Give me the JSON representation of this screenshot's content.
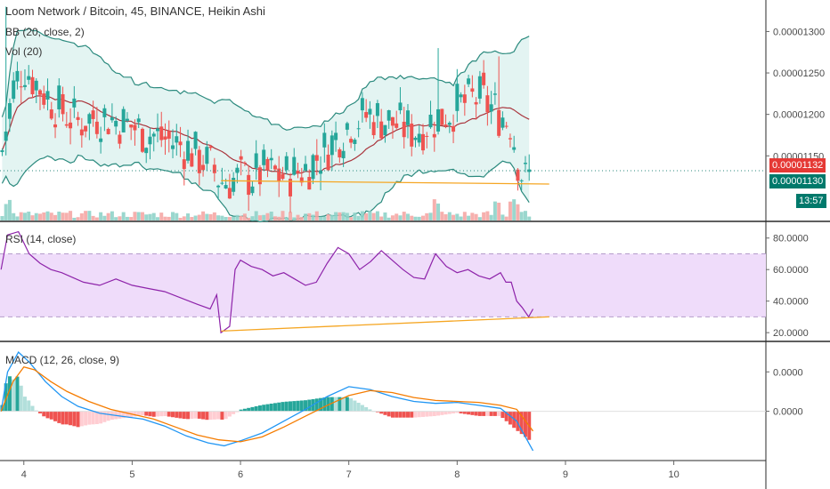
{
  "header": {
    "title": "Loom Network / Bitcoin, 45, BINANCE, Heikin Ashi",
    "bb_label": "BB (20, close, 2)",
    "vol_label": "Vol (20)",
    "rsi_label": "RSI (14, close)",
    "macd_label": "MACD (12, 26, close, 9)"
  },
  "badges": {
    "last_price": "0.00001132",
    "bb_basis": "0.00001130",
    "countdown": "13:57"
  },
  "colors": {
    "up": "#26a69a",
    "down": "#ef5350",
    "bb_band": "#2b8a7e",
    "bb_basis": "#a9343c",
    "bb_fill": "#e3f4f2",
    "rsi_line": "#8e24aa",
    "rsi_fill": "#efdcfa",
    "macd_line": "#2196f3",
    "signal_line": "#f57c00",
    "trend_line": "#f5a623",
    "last_price_badge": "#e53935",
    "basis_badge": "#00796b"
  },
  "chart_data": [
    {
      "type": "candlestick",
      "title": "Loom Network / Bitcoin, 45, BINANCE, Heikin Ashi",
      "x_ticks": [
        "4",
        "5",
        "6",
        "7",
        "8",
        "9",
        "10"
      ],
      "x_range": [
        3.78,
        10.85
      ],
      "y_ticks": [
        "0.00001300",
        "0.00001250",
        "0.00001200",
        "0.00001150"
      ],
      "y_range": [
        1.072e-05,
        1.338e-05
      ],
      "last_price": 1.132e-05,
      "bb_basis_value": 1.13e-05,
      "overlays": [
        "BB (20, close, 2)",
        "Vol (20)"
      ],
      "trend_line": {
        "x": [
          5.82,
          8.85
        ],
        "y": [
          1.12e-05,
          1.116e-05
        ]
      },
      "close_path": {
        "x": [
          3.79,
          3.9,
          4.0,
          4.1,
          4.3,
          4.5,
          4.7,
          4.9,
          5.1,
          5.3,
          5.5,
          5.7,
          5.82,
          6.0,
          6.2,
          6.4,
          6.6,
          6.8,
          7.0,
          7.2,
          7.4,
          7.6,
          7.8,
          8.0,
          8.2,
          8.4,
          8.5,
          8.55,
          8.62,
          8.7
        ],
        "y": [
          1.15e-05,
          1.23e-05,
          1.26e-05,
          1.24e-05,
          1.21e-05,
          1.19e-05,
          1.2e-05,
          1.19e-05,
          1.18e-05,
          1.17e-05,
          1.16e-05,
          1.14e-05,
          1.12e-05,
          1.122e-05,
          1.13e-05,
          1.125e-05,
          1.135e-05,
          1.16e-05,
          1.19e-05,
          1.2e-05,
          1.19e-05,
          1.18e-05,
          1.195e-05,
          1.21e-05,
          1.22e-05,
          1.2e-05,
          1.19e-05,
          1.15e-05,
          1.12e-05,
          1.13e-05
        ]
      },
      "spikes": [
        {
          "x": 7.81,
          "high": 1.28e-05
        },
        {
          "x": 8.37,
          "high": 1.27e-05
        },
        {
          "x": 3.85,
          "high": 1.33e-05
        }
      ],
      "volume_spikes": [
        3.84,
        7.81,
        8.37,
        8.5,
        8.56
      ]
    },
    {
      "type": "line",
      "title": "RSI (14, close)",
      "y_ticks": [
        "80.0000",
        "60.0000",
        "40.0000",
        "20.0000"
      ],
      "y_range": [
        15,
        90
      ],
      "bands": [
        30,
        70
      ],
      "x": [
        3.79,
        3.85,
        3.95,
        4.05,
        4.15,
        4.25,
        4.35,
        4.45,
        4.55,
        4.7,
        4.85,
        5.0,
        5.15,
        5.3,
        5.45,
        5.6,
        5.72,
        5.78,
        5.82,
        5.9,
        5.95,
        6.0,
        6.1,
        6.2,
        6.3,
        6.4,
        6.5,
        6.6,
        6.7,
        6.8,
        6.9,
        7.0,
        7.1,
        7.2,
        7.3,
        7.4,
        7.5,
        7.6,
        7.7,
        7.8,
        7.9,
        8.0,
        8.1,
        8.2,
        8.3,
        8.4,
        8.45,
        8.5,
        8.55,
        8.6,
        8.66,
        8.7
      ],
      "values": [
        60,
        82,
        84,
        70,
        64,
        60,
        58,
        55,
        52,
        50,
        54,
        50,
        48,
        46,
        42,
        38,
        35,
        44,
        20,
        24,
        60,
        66,
        62,
        60,
        56,
        58,
        54,
        50,
        52,
        64,
        74,
        70,
        60,
        65,
        72,
        66,
        60,
        55,
        54,
        70,
        62,
        58,
        60,
        56,
        54,
        58,
        52,
        52,
        40,
        36,
        30,
        35
      ],
      "trend_line": {
        "x": [
          5.82,
          8.85
        ],
        "y": [
          21,
          30
        ]
      }
    },
    {
      "type": "line",
      "title": "MACD (12, 26, close, 9)",
      "y_ticks": [
        "0.0000",
        "0.0000"
      ],
      "y_range": [
        -5,
        7
      ],
      "series": [
        {
          "x": [
            3.79,
            3.85,
            3.95,
            4.05,
            4.2,
            4.35,
            4.5,
            4.7,
            4.9,
            5.1,
            5.3,
            5.5,
            5.7,
            5.85,
            6.0,
            6.2,
            6.4,
            6.6,
            6.8,
            7.0,
            7.2,
            7.4,
            7.6,
            7.8,
            8.0,
            8.2,
            8.4,
            8.55,
            8.7
          ],
          "values": [
            0,
            4.0,
            6.0,
            5.0,
            3.0,
            1.5,
            0.5,
            -0.2,
            -0.5,
            -0.8,
            -1.5,
            -2.5,
            -3.2,
            -3.5,
            -3.0,
            -2.2,
            -1.0,
            0.2,
            1.5,
            2.5,
            2.2,
            1.5,
            1.0,
            0.8,
            0.9,
            0.6,
            0.3,
            -1.0,
            -4.0
          ]
        },
        {
          "x": [
            3.79,
            3.9,
            4.0,
            4.1,
            4.25,
            4.4,
            4.6,
            4.8,
            5.0,
            5.2,
            5.4,
            5.6,
            5.8,
            6.0,
            6.2,
            6.4,
            6.6,
            6.8,
            7.0,
            7.2,
            7.4,
            7.6,
            7.8,
            8.0,
            8.2,
            8.4,
            8.55,
            8.7
          ],
          "values": [
            0,
            3.0,
            4.5,
            4.2,
            3.0,
            2.0,
            1.0,
            0.2,
            -0.3,
            -0.8,
            -1.6,
            -2.4,
            -2.9,
            -3.1,
            -2.6,
            -1.6,
            -0.5,
            0.6,
            1.6,
            2.1,
            1.9,
            1.4,
            1.1,
            1.0,
            0.9,
            0.6,
            0.2,
            -2.0
          ]
        }
      ]
    }
  ]
}
